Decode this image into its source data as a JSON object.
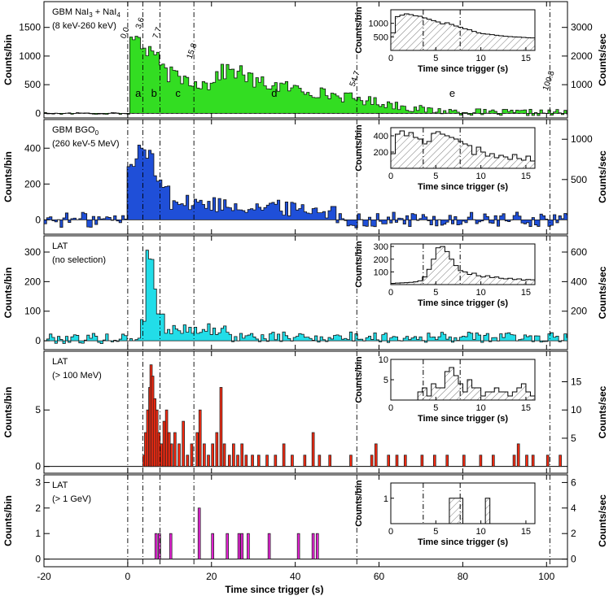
{
  "chart_data": {
    "type": "bar",
    "x_label": "Time since trigger (s)",
    "x_ticks": [
      "-20",
      "0",
      "20",
      "40",
      "60",
      "80",
      "100"
    ],
    "x_range": [
      -20,
      105
    ],
    "vlines": {
      "positions": [
        0.0,
        3.6,
        7.7,
        15.8,
        54.7,
        100.8
      ],
      "labels": [
        "0.0",
        "3.6",
        "7.7",
        "15.8",
        "54.7",
        "100.8"
      ]
    },
    "interval_labels": [
      {
        "t": 2.5,
        "label": "a"
      },
      {
        "t": 6.3,
        "label": "b"
      },
      {
        "t": 12.0,
        "label": "c"
      },
      {
        "t": 35.0,
        "label": "d"
      },
      {
        "t": 77.5,
        "label": "e"
      }
    ],
    "panels": [
      {
        "title": "GBM NaI3 + NaI4",
        "title_main": "GBM NaI",
        "title_sub1": "3",
        "title_mid": " + NaI",
        "title_sub2": "4",
        "subtitle": "(8 keV-260 keV)",
        "color": "#33dd22",
        "ylabel": "Counts/bin",
        "ylabel_right": "Counts/sec",
        "ylim": [
          -80,
          1950
        ],
        "yticks": [
          "0",
          "500",
          "1000",
          "1500"
        ],
        "right_ticks": [
          "1000",
          "2000",
          "3000"
        ],
        "right_scale": 0.5,
        "inset": {
          "ylabel": "Counts/bin",
          "xlabel": "Time since trigger (s)",
          "xticks": [
            "0",
            "5",
            "10",
            "15"
          ],
          "yticks": [
            "500",
            "1000"
          ],
          "ylim": [
            0,
            1500
          ],
          "values": [
            650,
            1250,
            1300,
            1350,
            1320,
            1280,
            1260,
            1200,
            1150,
            1100,
            1050,
            980,
            1020,
            960,
            900,
            850,
            800,
            760,
            700,
            650,
            620,
            600,
            580,
            560,
            540,
            520,
            510,
            500,
            490,
            480,
            470,
            460
          ]
        }
      },
      {
        "title": "GBM BGO0",
        "title_main": "GBM BGO",
        "title_sub1": "0",
        "subtitle": "(260 keV-5 MeV)",
        "color": "#1f4fd8",
        "ylabel": "Counts/bin",
        "ylabel_right": "Counts/sec",
        "ylim": [
          -80,
          560
        ],
        "yticks": [
          "0",
          "200",
          "400"
        ],
        "right_ticks": [
          "500",
          "1000"
        ],
        "right_scale": 0.45,
        "inset": {
          "ylabel": "Counts/bin",
          "xlabel": "Time since trigger (s)",
          "xticks": [
            "0",
            "5",
            "10",
            "15"
          ],
          "yticks": [
            "200",
            "400"
          ],
          "ylim": [
            0,
            500
          ],
          "values": [
            180,
            420,
            460,
            400,
            440,
            380,
            360,
            300,
            330,
            430,
            450,
            420,
            400,
            380,
            360,
            330,
            300,
            280,
            170,
            260,
            200,
            150,
            180,
            130,
            160,
            140,
            110,
            170,
            120,
            100,
            150,
            90
          ]
        }
      },
      {
        "title": "LAT",
        "subtitle": "(no selection)",
        "color": "#22dde8",
        "ylabel": "Counts/bin",
        "ylabel_right": "Counts/sec",
        "ylim": [
          -30,
          355
        ],
        "yticks": [
          "0",
          "100",
          "200",
          "300"
        ],
        "right_ticks": [
          "200",
          "400",
          "600"
        ],
        "right_scale": 0.5,
        "inset": {
          "ylabel": "Counts/bin",
          "xlabel": "Time since trigger (s)",
          "xticks": [
            "0",
            "5",
            "10",
            "15"
          ],
          "yticks": [
            "100",
            "200",
            "300"
          ],
          "ylim": [
            0,
            320
          ],
          "values": [
            10,
            12,
            14,
            15,
            18,
            22,
            30,
            60,
            120,
            200,
            290,
            300,
            260,
            200,
            150,
            110,
            100,
            80,
            90,
            70,
            60,
            70,
            55,
            60,
            50,
            45,
            50,
            40,
            45,
            35,
            40,
            38
          ]
        }
      },
      {
        "title": "LAT",
        "subtitle": "(> 100 MeV)",
        "color": "#ff2a10",
        "ylabel": "Counts/bin",
        "ylabel_right": "Counts/sec",
        "ylim": [
          -0.6,
          10.2
        ],
        "yticks": [
          "0",
          "5"
        ],
        "right_ticks": [
          "5",
          "10",
          "15"
        ],
        "right_scale": 0.5,
        "inset": {
          "ylabel": "Counts/bin",
          "xlabel": "Time since trigger (s)",
          "xticks": [
            "0",
            "5",
            "10",
            "15"
          ],
          "yticks": [
            "5",
            "10"
          ],
          "ylim": [
            0,
            10
          ],
          "values": [
            0,
            0,
            0,
            0,
            0,
            0,
            2,
            3,
            1,
            4,
            3,
            3,
            7,
            8,
            6,
            4,
            2,
            5,
            3,
            3,
            1,
            2,
            2,
            3,
            2,
            2,
            1,
            2,
            3,
            4,
            2,
            1
          ]
        }
      },
      {
        "title": "LAT",
        "subtitle": "(> 1 GeV)",
        "color": "#ee22dd",
        "ylabel": "Counts/bin",
        "ylabel_right": "Counts/sec",
        "ylim": [
          -0.3,
          3.3
        ],
        "yticks": [
          "0",
          "1",
          "2",
          "3"
        ],
        "right_ticks": [
          "0",
          "2",
          "4",
          "6"
        ],
        "right_scale": 0.5,
        "inset": {
          "ylabel": "Counts/bin",
          "xlabel": "Time since trigger (s)",
          "xticks": [
            "0",
            "5",
            "10",
            "15"
          ],
          "yticks": [
            "1"
          ],
          "ylim": [
            0,
            1.6
          ],
          "values": [
            0,
            0,
            0,
            0,
            0,
            0,
            0,
            0,
            0,
            0,
            0,
            0,
            0,
            1,
            1,
            1,
            0,
            0,
            0,
            0,
            0,
            1,
            0,
            0,
            0,
            0,
            0,
            0,
            0,
            0,
            0,
            0
          ]
        }
      }
    ]
  }
}
